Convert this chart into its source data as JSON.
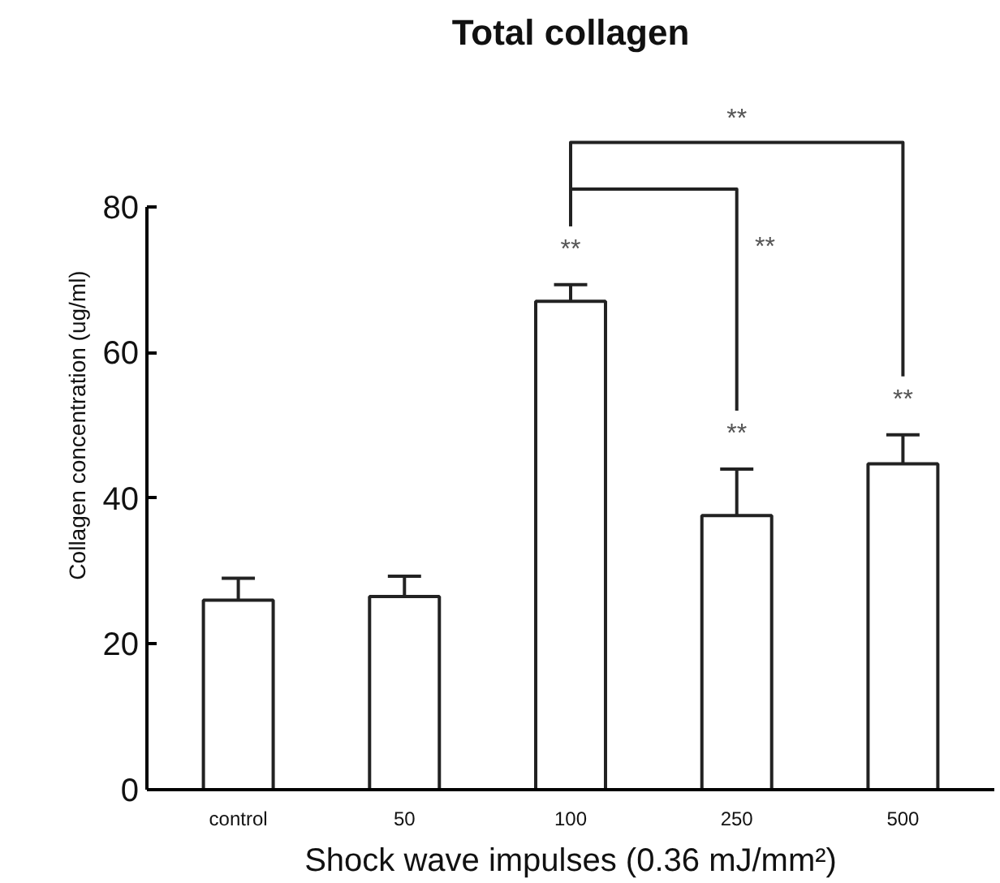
{
  "chart_data": {
    "type": "bar",
    "title": "Total collagen",
    "xlabel": "Shock wave impulses (0.36 mJ/mm²)",
    "ylabel": "Collagen concentration (ug/ml)",
    "categories": [
      "control",
      "50",
      "100",
      "250",
      "500"
    ],
    "values": [
      26,
      26.5,
      67,
      37.6,
      44.7
    ],
    "errors": [
      [
        26,
        29
      ],
      [
        26.5,
        29.3
      ],
      [
        67,
        69.3
      ],
      [
        37.6,
        44
      ],
      [
        44.7,
        48.7
      ]
    ],
    "color": "#ffffff",
    "ylim": [
      0,
      80
    ],
    "yticks": [
      0,
      20,
      40,
      60,
      80
    ],
    "grid": false,
    "annotations": [
      {
        "text": "**",
        "x": "100",
        "y": 67
      },
      {
        "text": "**",
        "x": "250",
        "y": 37.6
      },
      {
        "text": "**",
        "x": "500",
        "y": 44.7
      },
      "**",
      "**"
    ]
  }
}
